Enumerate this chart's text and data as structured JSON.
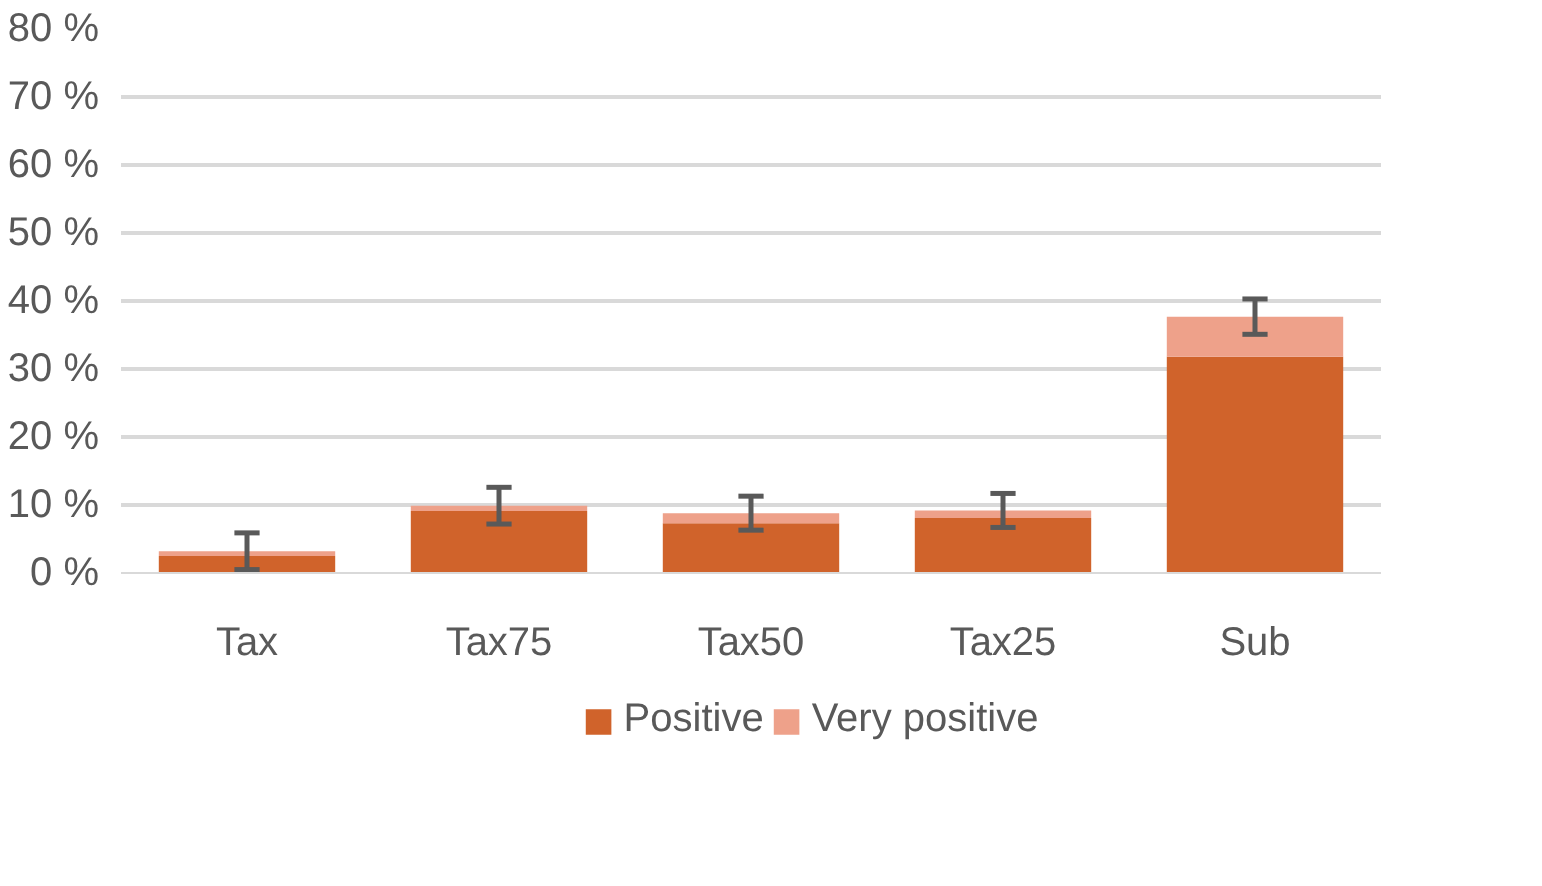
{
  "chart_data": {
    "type": "bar",
    "stacked": true,
    "categories": [
      "Tax",
      "Tax75",
      "Tax50",
      "Tax25",
      "Sub"
    ],
    "series": [
      {
        "name": "Positive",
        "color": "#d0632b",
        "values": [
          2.5,
          9.1,
          7.3,
          8.1,
          31.8
        ]
      },
      {
        "name": "Very positive",
        "color": "#eea18a",
        "values": [
          0.7,
          0.8,
          1.5,
          1.1,
          5.9
        ],
        "errors": [
          2.7,
          2.7,
          2.5,
          2.5,
          2.6
        ]
      }
    ],
    "ylim": [
      0,
      80
    ],
    "yticks": [
      {
        "value": 0,
        "label": "0 %"
      },
      {
        "value": 10,
        "label": "10 %"
      },
      {
        "value": 20,
        "label": "20 %"
      },
      {
        "value": 30,
        "label": "30 %"
      },
      {
        "value": 40,
        "label": "40 %"
      },
      {
        "value": 50,
        "label": "50 %"
      },
      {
        "value": 60,
        "label": "60 %"
      },
      {
        "value": 70,
        "label": "70 %"
      },
      {
        "value": 80,
        "label": "80 %"
      }
    ],
    "grid": "y",
    "legend": "bottom"
  }
}
